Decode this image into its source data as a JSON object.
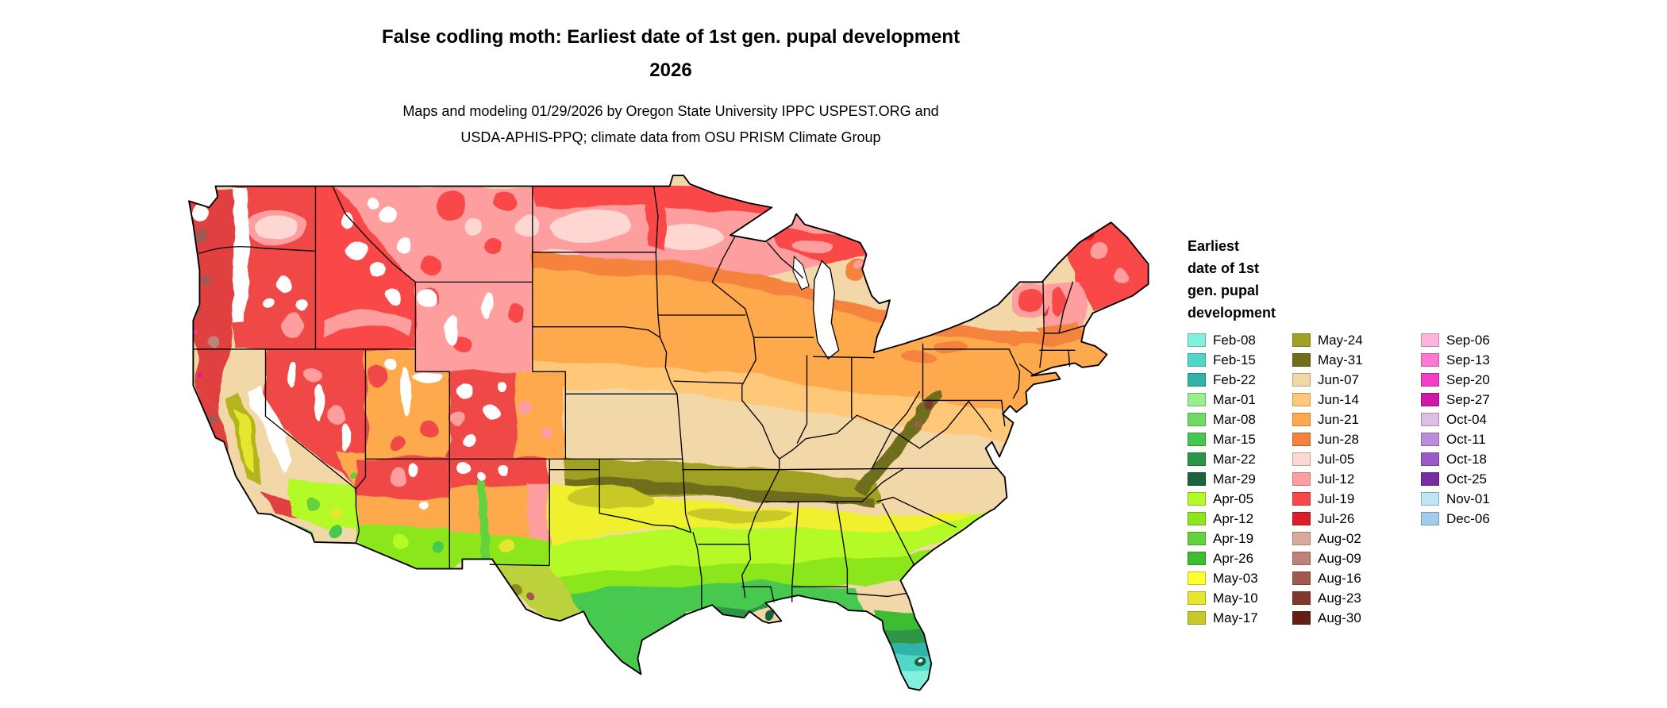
{
  "header": {
    "title_line1": "False codling moth: Earliest date of 1st gen. pupal development",
    "title_line2": "2026",
    "subtitle_line1": "Maps and modeling 01/29/2026 by Oregon State University IPPC USPEST.ORG and",
    "subtitle_line2": "USDA-APHIS-PPQ; climate data from OSU PRISM Climate Group"
  },
  "legend": {
    "title_lines": "Earliest\ndate of 1st\ngen. pupal\ndevelopment",
    "columns": [
      [
        {
          "label": "Feb-08",
          "color": "#82F0DC"
        },
        {
          "label": "Feb-15",
          "color": "#50D7C8"
        },
        {
          "label": "Feb-22",
          "color": "#2FB4AA"
        },
        {
          "label": "Mar-01",
          "color": "#96F08C"
        },
        {
          "label": "Mar-08",
          "color": "#6EDC64"
        },
        {
          "label": "Mar-15",
          "color": "#46C850"
        },
        {
          "label": "Mar-22",
          "color": "#2D9646"
        },
        {
          "label": "Mar-29",
          "color": "#19643C"
        },
        {
          "label": "Apr-05",
          "color": "#B4FA28"
        },
        {
          "label": "Apr-12",
          "color": "#8CE61E"
        },
        {
          "label": "Apr-19",
          "color": "#64D23C"
        },
        {
          "label": "Apr-26",
          "color": "#3CBE32"
        },
        {
          "label": "May-03",
          "color": "#FFFF32"
        },
        {
          "label": "May-10",
          "color": "#E6E62E"
        },
        {
          "label": "May-17",
          "color": "#C8C828"
        }
      ],
      [
        {
          "label": "May-24",
          "color": "#A0A022"
        },
        {
          "label": "May-31",
          "color": "#6E6E1C"
        },
        {
          "label": "Jun-07",
          "color": "#F2D8A8"
        },
        {
          "label": "Jun-14",
          "color": "#FFC878"
        },
        {
          "label": "Jun-21",
          "color": "#FFA94D"
        },
        {
          "label": "Jun-28",
          "color": "#F5823C"
        },
        {
          "label": "Jul-05",
          "color": "#FFD7D2"
        },
        {
          "label": "Jul-12",
          "color": "#FF9E9E"
        },
        {
          "label": "Jul-19",
          "color": "#FA4646"
        },
        {
          "label": "Jul-26",
          "color": "#DC1E28"
        },
        {
          "label": "Aug-02",
          "color": "#D7AA9B"
        },
        {
          "label": "Aug-09",
          "color": "#BE8278"
        },
        {
          "label": "Aug-16",
          "color": "#A05A50"
        },
        {
          "label": "Aug-23",
          "color": "#82372D"
        },
        {
          "label": "Aug-30",
          "color": "#641E14"
        }
      ],
      [
        {
          "label": "Sep-06",
          "color": "#FFB4DC"
        },
        {
          "label": "Sep-13",
          "color": "#FF78D2"
        },
        {
          "label": "Sep-20",
          "color": "#F53CC8"
        },
        {
          "label": "Sep-27",
          "color": "#D216AA"
        },
        {
          "label": "Oct-04",
          "color": "#DCBEE6"
        },
        {
          "label": "Oct-11",
          "color": "#BE8CDC"
        },
        {
          "label": "Oct-18",
          "color": "#9B5AC8"
        },
        {
          "label": "Oct-25",
          "color": "#782DA0"
        },
        {
          "label": "Nov-01",
          "color": "#BEE6F5"
        },
        {
          "label": "Dec-06",
          "color": "#A0CDEB"
        }
      ]
    ]
  }
}
